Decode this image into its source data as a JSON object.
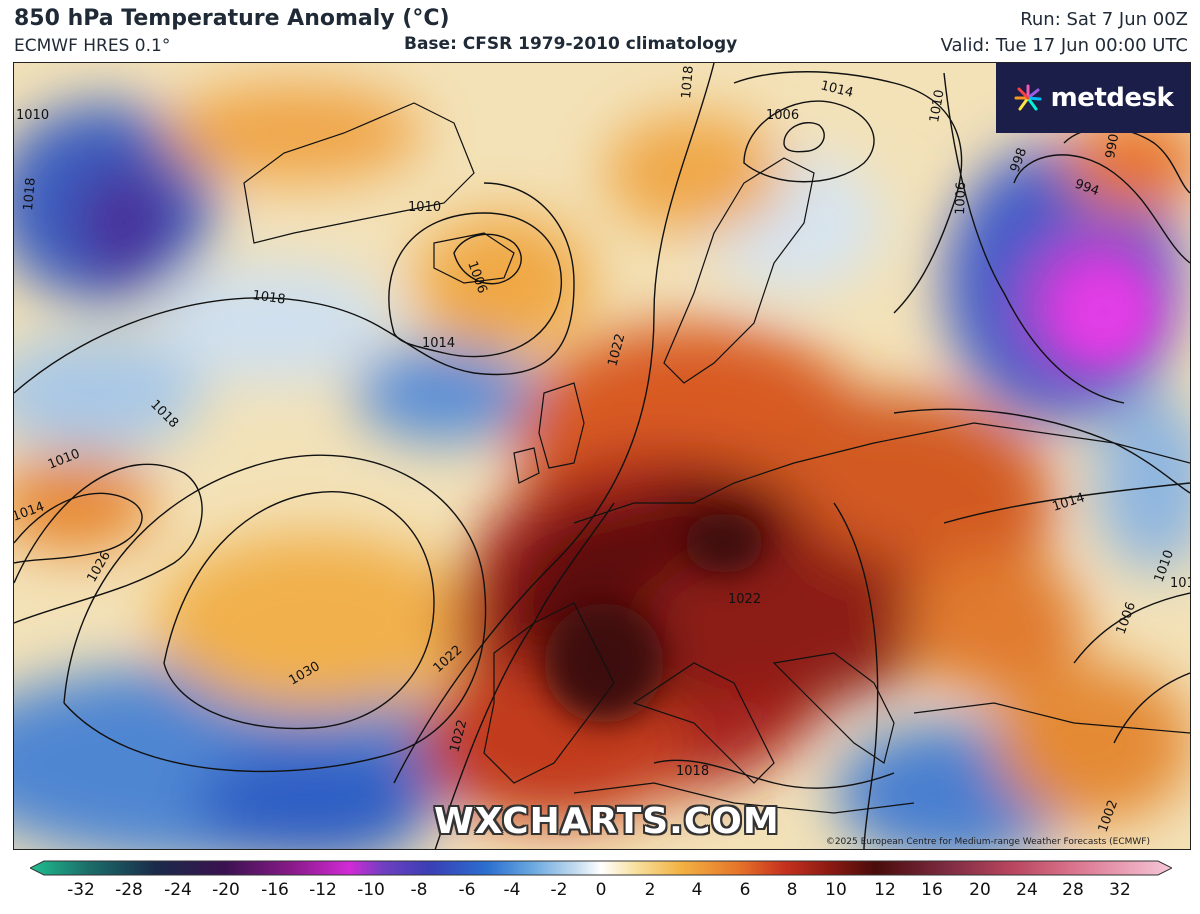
{
  "header": {
    "title": "850 hPa Temperature Anomaly (°C)",
    "model": "ECMWF HRES 0.1°",
    "base": "Base: CFSR 1979-2010 climatology",
    "run": "Run: Sat 7 Jun 00Z",
    "valid": "Valid: Tue 17 Jun 00:00 UTC"
  },
  "logo": {
    "text": "metdesk",
    "color_bg": "#1c1e4a"
  },
  "watermark": "WXCHARTS.COM",
  "copyright": "©2025 European Centre for Medium-range Weather Forecasts (ECMWF)",
  "isobar_labels": [
    "1010",
    "1018",
    "1010",
    "1006",
    "1014",
    "1014",
    "1006",
    "1010",
    "998",
    "994",
    "990",
    "1006",
    "1018",
    "1014",
    "1022",
    "1018",
    "1010",
    "1014",
    "1026",
    "1030",
    "1022",
    "1022",
    "1018",
    "1014",
    "1010",
    "1006",
    "1002",
    "1022",
    "1018"
  ],
  "colorbar": {
    "ticks": [
      "-32",
      "-28",
      "-24",
      "-20",
      "-16",
      "-12",
      "-10",
      "-8",
      "-6",
      "-4",
      "-2",
      "0",
      "2",
      "4",
      "6",
      "8",
      "10",
      "12",
      "16",
      "20",
      "24",
      "28",
      "32"
    ],
    "colors": [
      "#1fbf8f",
      "#1b6f6a",
      "#1a2b4a",
      "#3a1250",
      "#8a1a8a",
      "#d12bd6",
      "#6e3fc0",
      "#3a3fb5",
      "#2b6fd0",
      "#6aa8e0",
      "#c8def0",
      "#ffffff",
      "#f7e0a0",
      "#f2b243",
      "#e6752a",
      "#c6321e",
      "#8c1a12",
      "#4a0c0a",
      "#7a2a40",
      "#b8465e",
      "#d8708a",
      "#eaa0b6",
      "#f5c8d8"
    ]
  }
}
